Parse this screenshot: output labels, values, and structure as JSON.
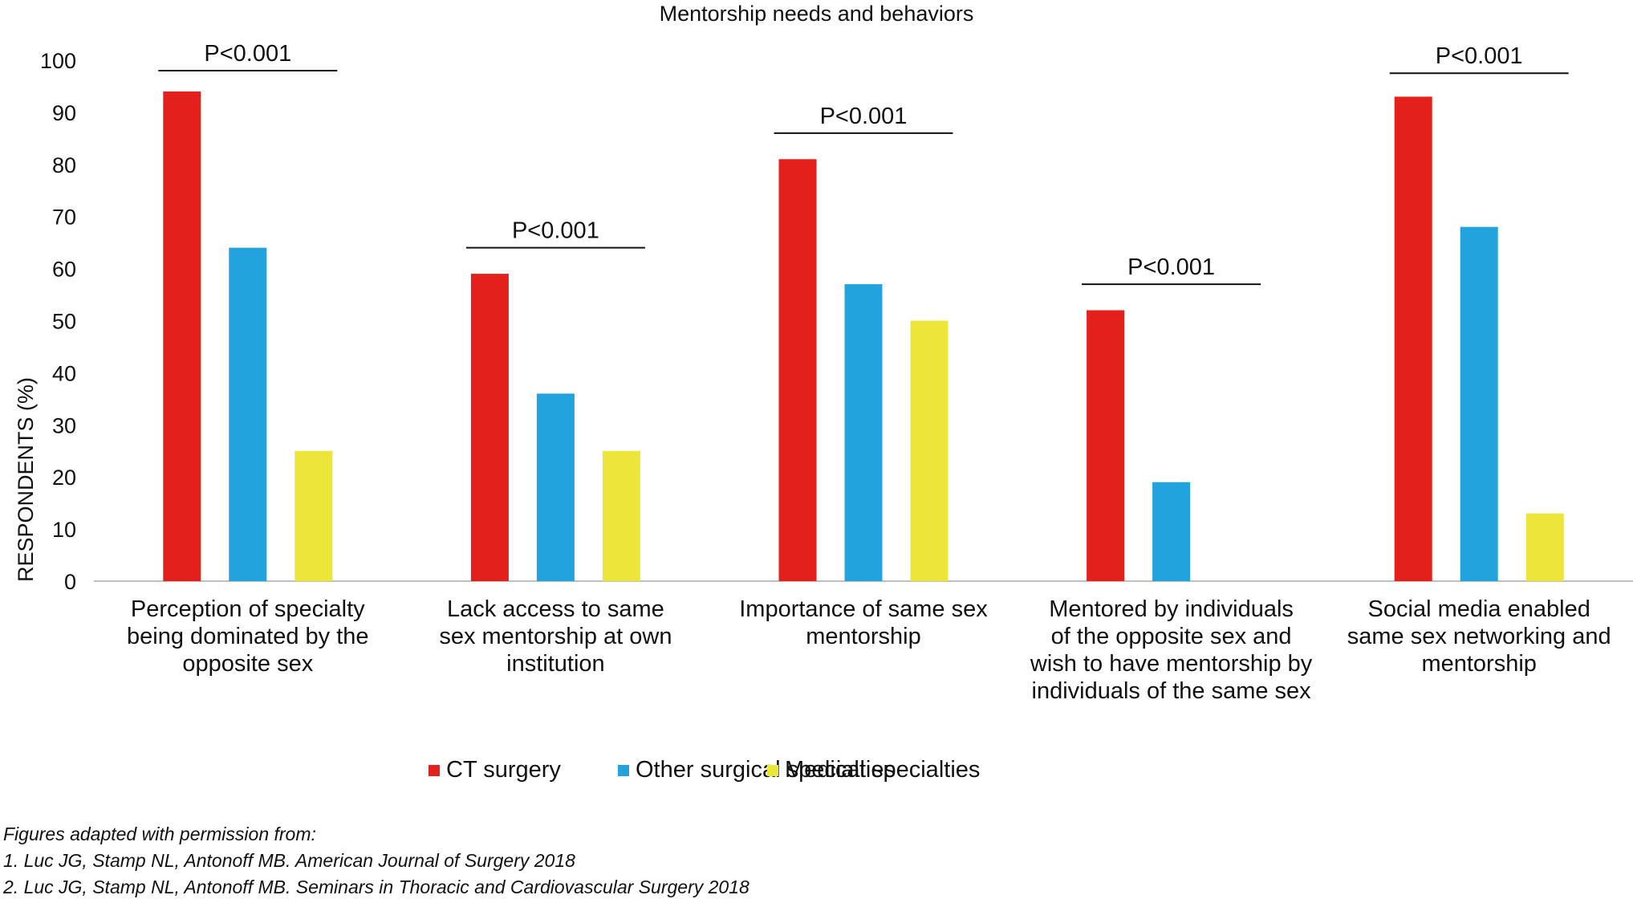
{
  "chart_data": {
    "type": "bar",
    "title": "Mentorship needs and behaviors",
    "ylabel": "RESPONDENTS (%)",
    "xlabel": "",
    "ylim": [
      0,
      100
    ],
    "yticks": [
      "0",
      "10",
      "20",
      "30",
      "40",
      "50",
      "60",
      "70",
      "80",
      "90",
      "100"
    ],
    "grid": false,
    "legend_position": "bottom",
    "categories": [
      "Perception of specialty\nbeing dominated by the\nopposite sex",
      "Lack access to same\nsex mentorship at own\ninstitution",
      "Importance of same sex\nmentorship",
      "Mentored by individuals\nof the opposite sex and\nwish to have mentorship by\nindividuals of the same sex",
      "Social media enabled\nsame sex networking and\nmentorship"
    ],
    "series": [
      {
        "name": "CT surgery",
        "color": "#e3201b",
        "values": [
          94,
          59,
          81,
          52,
          93
        ]
      },
      {
        "name": "Other surgical specialties",
        "color": "#22a3de",
        "values": [
          64,
          36,
          57,
          19,
          68
        ]
      },
      {
        "name": "Medical specialties",
        "color": "#ece63a",
        "values": [
          25,
          25,
          50,
          0,
          13
        ]
      }
    ],
    "annotations": [
      {
        "text": "P<0.001",
        "category_index": 0,
        "y": 98
      },
      {
        "text": "P<0.001",
        "category_index": 1,
        "y": 64
      },
      {
        "text": "P<0.001",
        "category_index": 2,
        "y": 86
      },
      {
        "text": "P<0.001",
        "category_index": 3,
        "y": 57
      },
      {
        "text": "P<0.001",
        "category_index": 4,
        "y": 97.5
      }
    ]
  },
  "footnotes": [
    "Figures adapted with permission from:",
    "1. Luc JG, Stamp NL, Antonoff MB. American Journal of Surgery 2018",
    "2. Luc JG, Stamp NL, Antonoff MB. Seminars in Thoracic and Cardiovascular Surgery 2018"
  ]
}
